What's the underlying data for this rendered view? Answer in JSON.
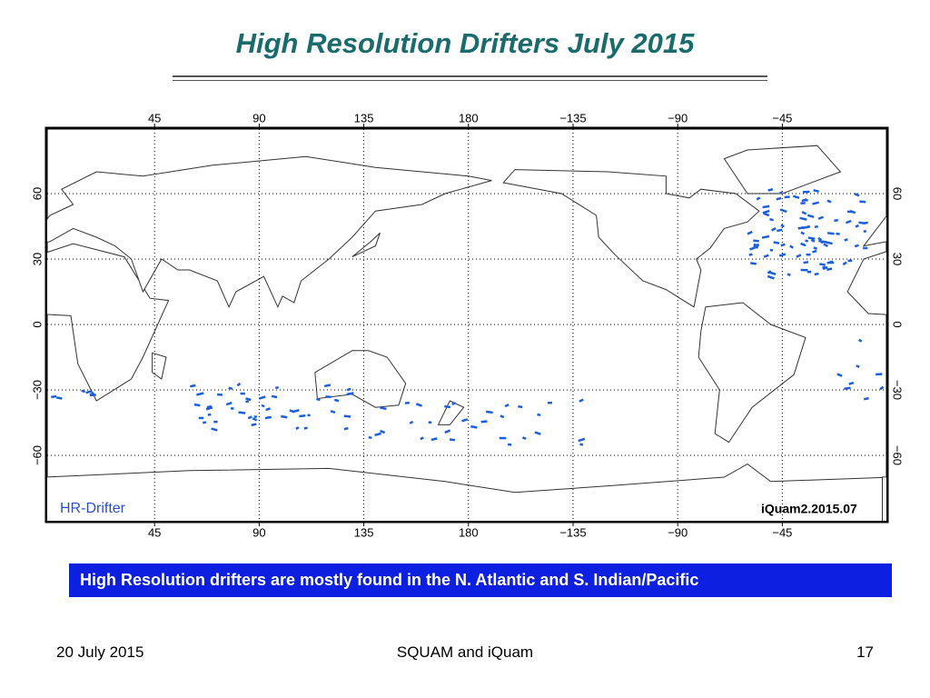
{
  "title": "High Resolution Drifters July 2015",
  "map": {
    "lon_labels": [
      "45",
      "90",
      "135",
      "180",
      "−135",
      "−90",
      "−45"
    ],
    "lat_labels": [
      "60",
      "30",
      "0",
      "−30",
      "−60"
    ],
    "legend": "HR-Drifter",
    "stamp": "iQuam2.2015.07"
  },
  "caption": "High Resolution drifters are mostly found in the N. Atlantic and S. Indian/Pacific",
  "footer": {
    "date": "20 July 2015",
    "center": "SQUAM and iQuam",
    "page": "17"
  }
}
